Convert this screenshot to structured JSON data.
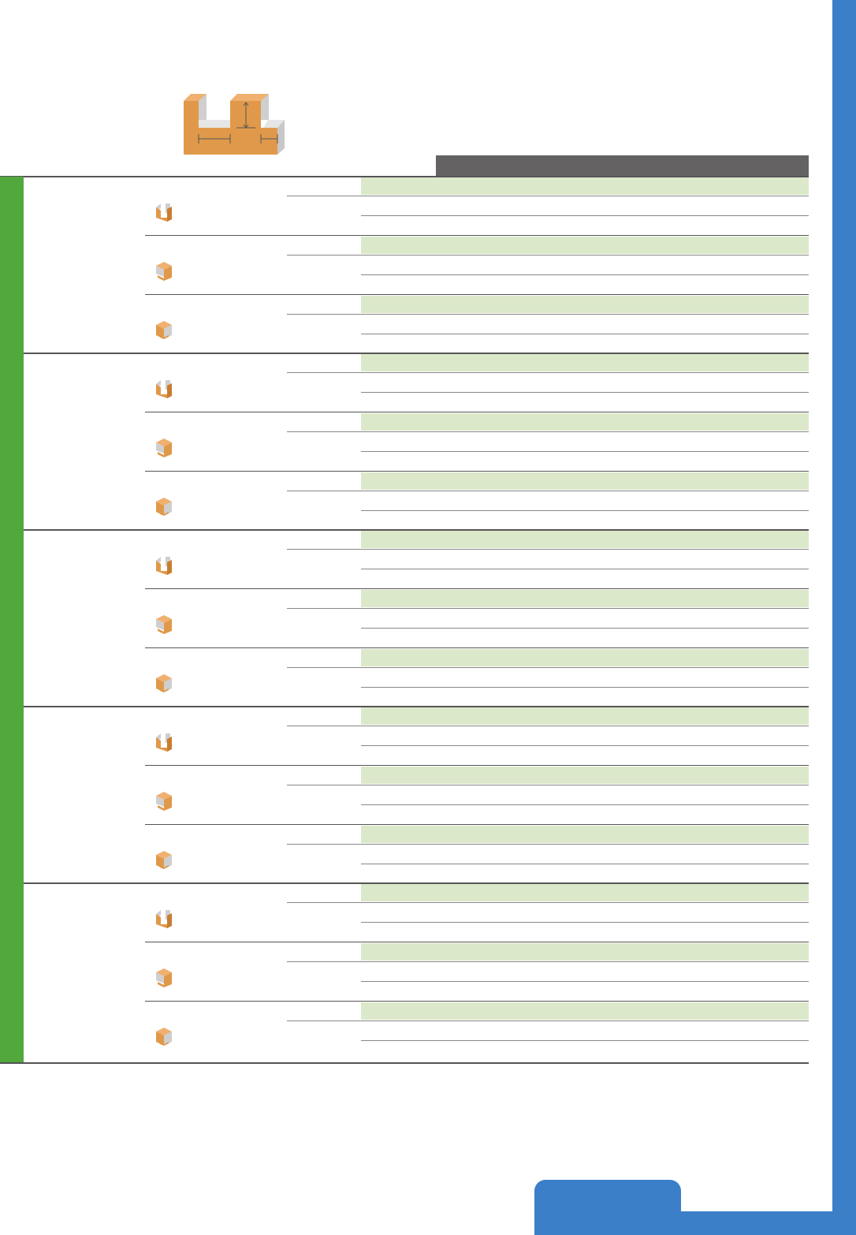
{
  "colors": {
    "accent_blue": "#3b7fc9",
    "accent_green": "#52a83c",
    "header_dark": "#646262",
    "stripe_green": "#dce8ca",
    "orange": "#e0994a",
    "grey_face": "#cfcfcf"
  },
  "diagram": {
    "icon": "u-groove-profile-icon"
  },
  "groups": [
    {
      "rows": [
        {
          "icon": "u-block-icon"
        },
        {
          "icon": "stepped-block-icon"
        },
        {
          "icon": "cube-block-icon"
        }
      ]
    },
    {
      "rows": [
        {
          "icon": "u-block-icon"
        },
        {
          "icon": "stepped-block-icon"
        },
        {
          "icon": "cube-block-icon"
        }
      ]
    },
    {
      "rows": [
        {
          "icon": "u-block-icon"
        },
        {
          "icon": "stepped-block-icon"
        },
        {
          "icon": "cube-block-icon"
        }
      ]
    },
    {
      "rows": [
        {
          "icon": "u-block-icon"
        },
        {
          "icon": "stepped-block-icon"
        },
        {
          "icon": "cube-block-icon"
        }
      ]
    },
    {
      "rows": [
        {
          "icon": "u-block-icon"
        },
        {
          "icon": "stepped-block-icon"
        },
        {
          "icon": "cube-block-icon"
        }
      ]
    }
  ]
}
